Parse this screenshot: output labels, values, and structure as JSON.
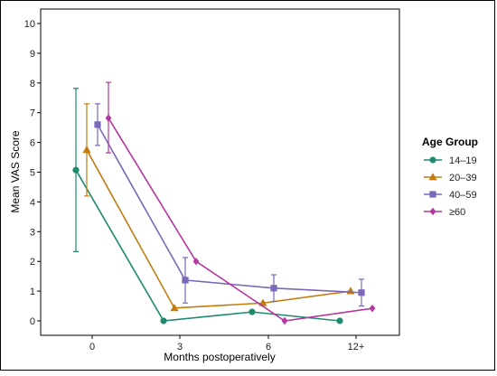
{
  "chart_data": {
    "type": "line",
    "xlabel": "Months postoperatively",
    "ylabel": "Mean VAS Score",
    "categories": [
      "0",
      "3",
      "6",
      "12+"
    ],
    "ylim": [
      0,
      10
    ],
    "yticks": [
      0,
      1,
      2,
      3,
      4,
      5,
      6,
      7,
      8,
      9,
      10
    ],
    "grid": false,
    "legend": {
      "title": "Age Group",
      "placement": "right"
    },
    "series": [
      {
        "name": "14–19",
        "color": "#1f8a70",
        "marker": "circle",
        "values": [
          5.07,
          0.0,
          0.3,
          0.0
        ],
        "errors": [
          [
            2.33,
            7.82
          ],
          null,
          null,
          null
        ]
      },
      {
        "name": "20–39",
        "color": "#c27c0e",
        "marker": "triangle",
        "values": [
          5.75,
          0.43,
          0.6,
          1.0
        ],
        "errors": [
          [
            4.2,
            7.3
          ],
          null,
          null,
          null
        ]
      },
      {
        "name": "40–59",
        "color": "#7b68b8",
        "marker": "square",
        "values": [
          6.6,
          1.37,
          1.1,
          0.95
        ],
        "errors": [
          [
            5.9,
            7.3
          ],
          [
            0.6,
            2.13
          ],
          [
            0.65,
            1.55
          ],
          [
            0.5,
            1.4
          ]
        ]
      },
      {
        "name": "≥60",
        "color": "#b5379f",
        "marker": "diamond",
        "values": [
          6.82,
          2.0,
          0.0,
          0.42
        ],
        "errors": [
          [
            5.65,
            8.02
          ],
          null,
          null,
          null
        ]
      }
    ]
  }
}
